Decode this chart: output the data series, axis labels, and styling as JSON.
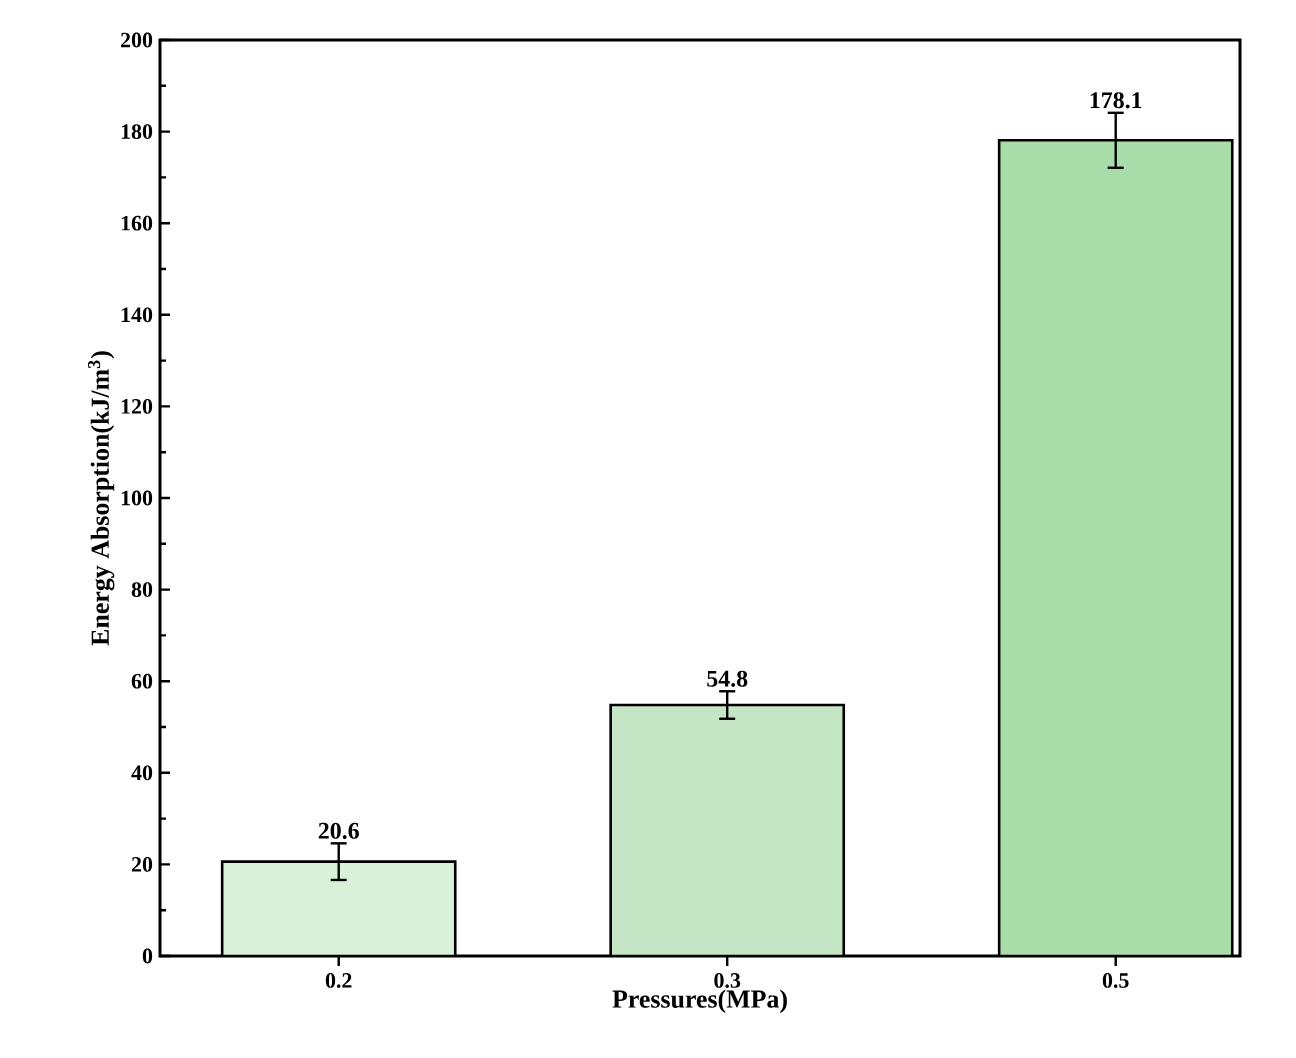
{
  "chart_data": {
    "type": "bar",
    "xlabel": "Pressures(MPa)",
    "ylabel": "Energy Absorption(kJ/m$^{3}$)",
    "categories": [
      "0.2",
      "0.3",
      "0.5"
    ],
    "values": [
      20.6,
      54.8,
      178.1
    ],
    "errors": [
      4,
      3,
      6
    ],
    "colors": [
      "#d9f0d9",
      "#c4e6c4",
      "#a8dca8"
    ],
    "data_labels": true,
    "ylim": [
      0,
      200
    ],
    "yticks": [
      0,
      20,
      40,
      60,
      80,
      100,
      120,
      140,
      160,
      180,
      200
    ]
  }
}
